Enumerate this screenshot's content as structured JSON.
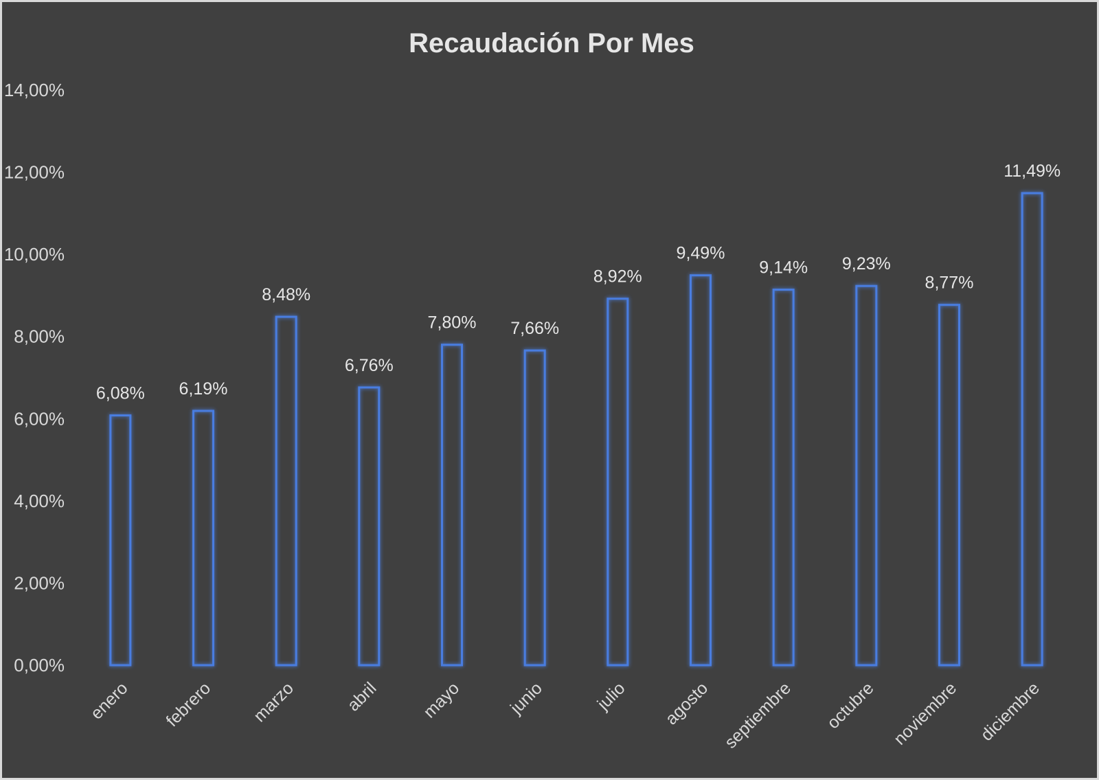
{
  "chart_data": {
    "type": "bar",
    "title": "Recaudación Por Mes",
    "xlabel": "",
    "ylabel": "",
    "ylim": [
      0,
      14
    ],
    "y_ticks": [
      "0,00%",
      "2,00%",
      "4,00%",
      "6,00%",
      "8,00%",
      "10,00%",
      "12,00%",
      "14,00%"
    ],
    "y_tick_values": [
      0,
      2,
      4,
      6,
      8,
      10,
      12,
      14
    ],
    "categories": [
      "enero",
      "febrero",
      "marzo",
      "abril",
      "mayo",
      "junio",
      "julio",
      "agosto",
      "septiembre",
      "octubre",
      "noviembre",
      "diciembre"
    ],
    "values": [
      6.08,
      6.19,
      8.48,
      6.76,
      7.8,
      7.66,
      8.92,
      9.49,
      9.14,
      9.23,
      8.77,
      11.49
    ],
    "data_labels": [
      "6,08%",
      "6,19%",
      "8,48%",
      "6,76%",
      "7,80%",
      "7,66%",
      "8,92%",
      "9,49%",
      "9,14%",
      "9,23%",
      "8,77%",
      "11,49%"
    ],
    "grid": false,
    "legend": "none",
    "colors": {
      "background": "#404040",
      "bar_outline": "#4a7de0",
      "text": "#d9d9d9"
    }
  }
}
